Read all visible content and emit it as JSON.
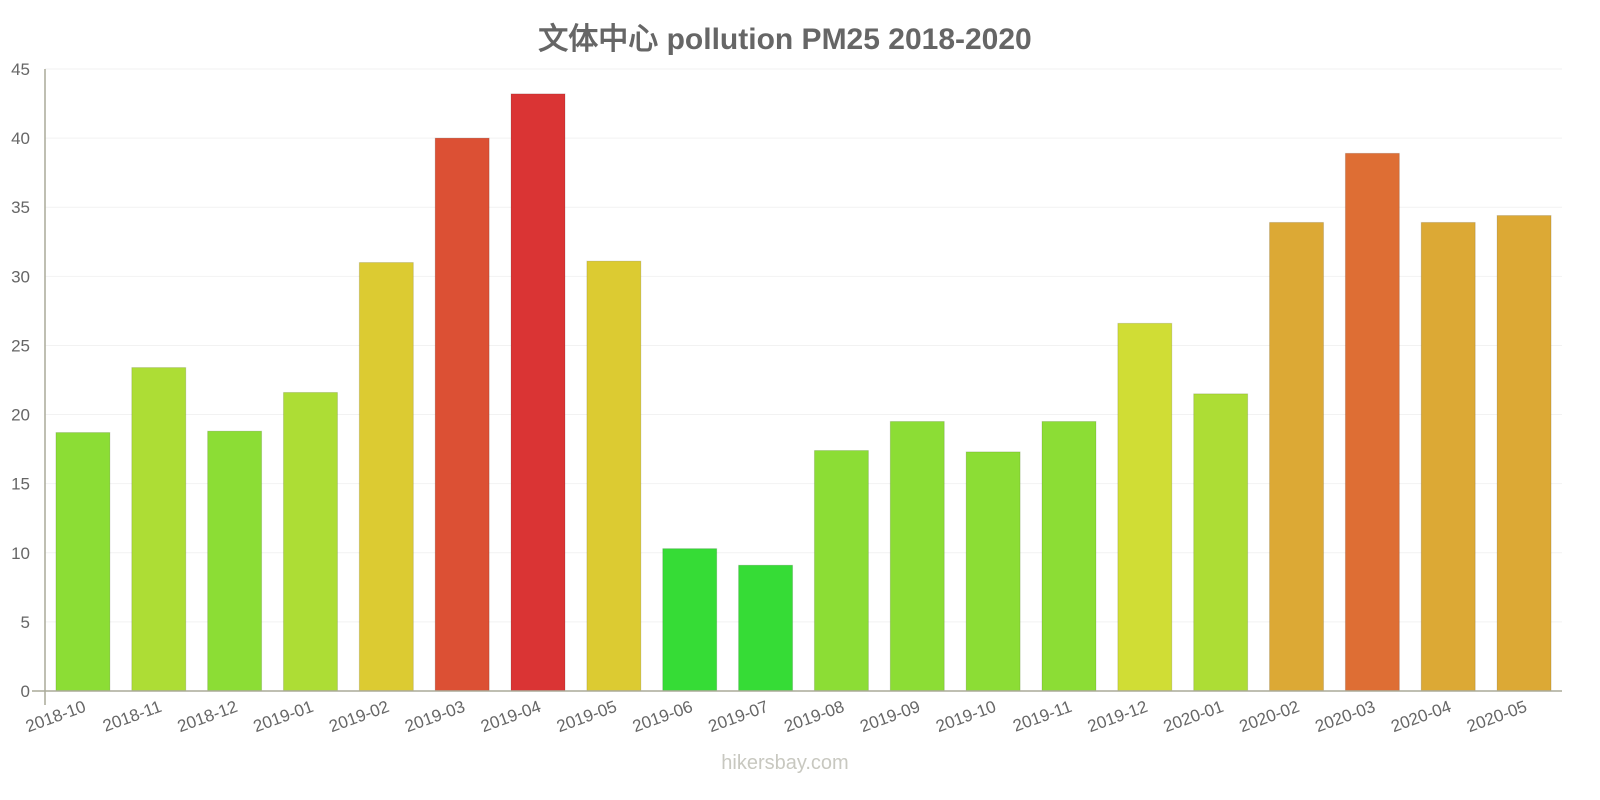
{
  "title": "文体中心 pollution PM25 2018-2020",
  "footer": "hikersbay.com",
  "chart_data": {
    "type": "bar",
    "title": "文体中心 pollution PM25 2018-2020",
    "xlabel": "",
    "ylabel": "",
    "ylim": [
      0,
      45
    ],
    "yticks": [
      0,
      5,
      10,
      15,
      20,
      25,
      30,
      35,
      40,
      45
    ],
    "grid": true,
    "legend": null,
    "categories": [
      "2018-10",
      "2018-11",
      "2018-12",
      "2019-01",
      "2019-02",
      "2019-03",
      "2019-04",
      "2019-05",
      "2019-06",
      "2019-07",
      "2019-08",
      "2019-09",
      "2019-10",
      "2019-11",
      "2019-12",
      "2020-01",
      "2020-02",
      "2020-03",
      "2020-04",
      "2020-05"
    ],
    "values": [
      18.7,
      23.4,
      18.8,
      21.6,
      31.0,
      40.0,
      43.2,
      31.1,
      10.3,
      9.1,
      17.4,
      19.5,
      17.3,
      19.5,
      26.6,
      21.5,
      33.9,
      38.9,
      33.9,
      34.4
    ],
    "colors": [
      "#8cdd35",
      "#addd35",
      "#8cdd35",
      "#addd35",
      "#dccb32",
      "#dc5034",
      "#da3434",
      "#dccb32",
      "#36dc36",
      "#36dc36",
      "#8cdd35",
      "#8cdd35",
      "#8cdd35",
      "#8cdd35",
      "#d0dd35",
      "#addd35",
      "#dca935",
      "#de6e34",
      "#dca935",
      "#dca935"
    ]
  },
  "colors": {
    "title": "#666666",
    "axis": "#aaaa99",
    "grid": "#f2f2f2",
    "tick_label": "#666666",
    "footer": "#c8c8c0"
  }
}
